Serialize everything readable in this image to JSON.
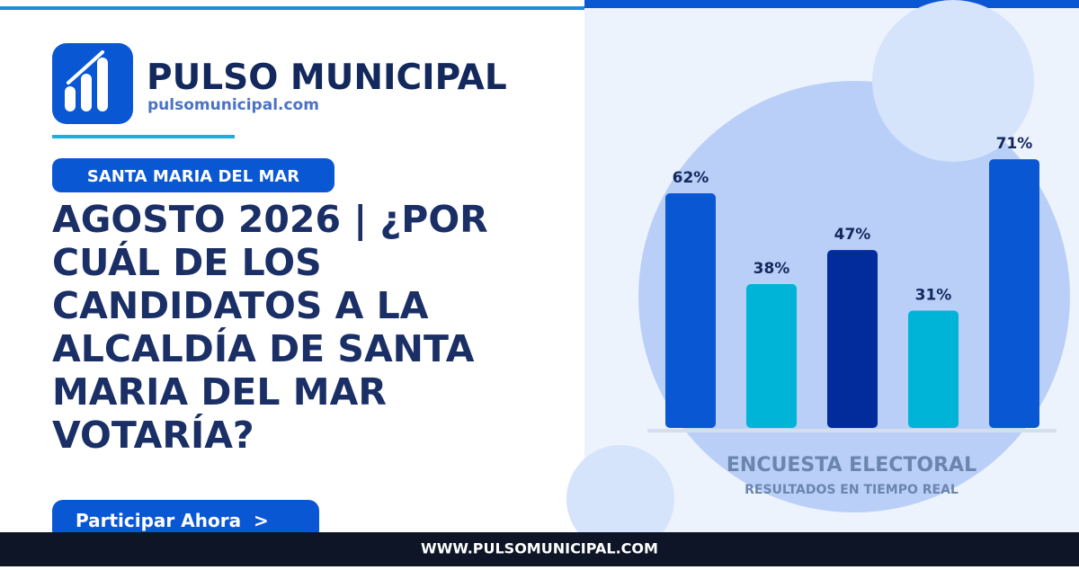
{
  "brand": {
    "name": "PULSO MUNICIPAL",
    "url": "pulsomunicipal.com"
  },
  "tag": "SANTA MARIA DEL MAR",
  "headline": [
    "AGOSTO 2026 | ¿POR",
    "CUÁL DE LOS",
    "CANDIDATOS A LA",
    "ALCALDÍA DE SANTA",
    "MARIA DEL MAR",
    "VOTARÍA?"
  ],
  "button": "Participar Ahora  >",
  "footer": "WWW.PULSOMUNICIPAL.COM",
  "chart_data": {
    "type": "bar",
    "title": "ENCUESTA ELECTORAL",
    "subtitle": "RESULTADOS EN TIEMPO REAL",
    "values": [
      62,
      38,
      47,
      31,
      71
    ],
    "value_labels": [
      "62%",
      "38%",
      "47%",
      "31%",
      "71%"
    ],
    "colors": [
      "#0a57d4",
      "#00b4d8",
      "#022c9c",
      "#00b4d8",
      "#0a57d4"
    ]
  }
}
